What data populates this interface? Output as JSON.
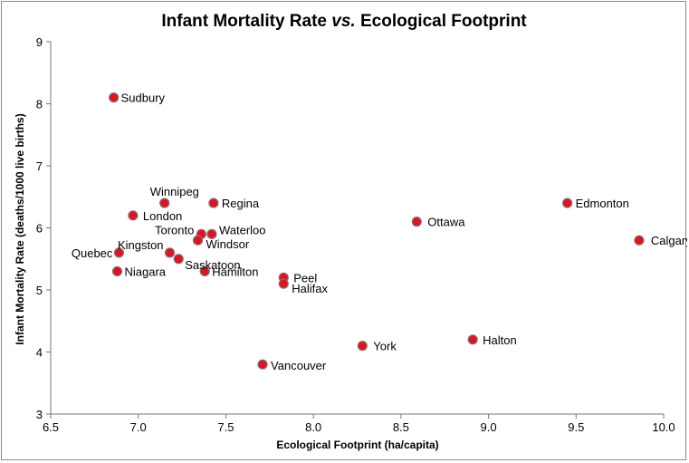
{
  "chart_data": {
    "type": "scatter",
    "title": "Infant Mortality Rate",
    "title_italic": "vs.",
    "title_end": "Ecological Footprint",
    "xlabel": "Ecological Footprint (ha/capita)",
    "ylabel": "Infant Mortality Rate (deaths/1000 live births)",
    "xlim": [
      6.5,
      10.0
    ],
    "ylim": [
      3,
      9
    ],
    "xticks": [
      "6.5",
      "7.0",
      "7.5",
      "8.0",
      "8.5",
      "9.0",
      "9.5",
      "10.0"
    ],
    "yticks": [
      "3",
      "4",
      "5",
      "6",
      "7",
      "8",
      "9"
    ],
    "grid": false,
    "marker_color": "#e8101e",
    "marker_edge": "#777777",
    "points": [
      {
        "label": "Sudbury",
        "x": 6.86,
        "y": 8.1
      },
      {
        "label": "Winnipeg",
        "x": 7.15,
        "y": 6.4
      },
      {
        "label": "Regina",
        "x": 7.43,
        "y": 6.4
      },
      {
        "label": "London",
        "x": 6.97,
        "y": 6.2
      },
      {
        "label": "Toronto",
        "x": 7.36,
        "y": 5.9
      },
      {
        "label": "Waterloo",
        "x": 7.42,
        "y": 5.9
      },
      {
        "label": "Windsor",
        "x": 7.34,
        "y": 5.8
      },
      {
        "label": "Kingston",
        "x": 7.18,
        "y": 5.6
      },
      {
        "label": "Quebec",
        "x": 6.89,
        "y": 5.6
      },
      {
        "label": "Saskatoon",
        "x": 7.23,
        "y": 5.5
      },
      {
        "label": "Niagara",
        "x": 6.88,
        "y": 5.3
      },
      {
        "label": "Hamilton",
        "x": 7.38,
        "y": 5.3
      },
      {
        "label": "Peel",
        "x": 7.83,
        "y": 5.2
      },
      {
        "label": "Halifax",
        "x": 7.83,
        "y": 5.1
      },
      {
        "label": "Ottawa",
        "x": 8.59,
        "y": 6.1
      },
      {
        "label": "Edmonton",
        "x": 9.45,
        "y": 6.4
      },
      {
        "label": "Calgary",
        "x": 9.86,
        "y": 5.8
      },
      {
        "label": "York",
        "x": 8.28,
        "y": 4.1
      },
      {
        "label": "Halton",
        "x": 8.91,
        "y": 4.2
      },
      {
        "label": "Vancouver",
        "x": 7.71,
        "y": 3.8
      }
    ]
  }
}
